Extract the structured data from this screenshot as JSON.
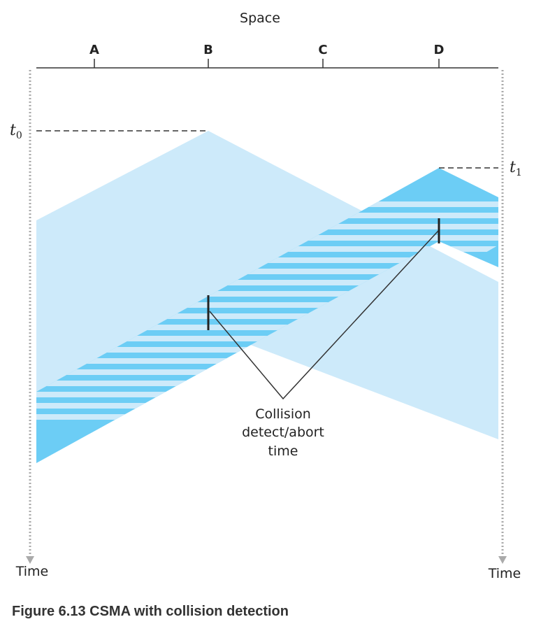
{
  "axis": {
    "label": "Space"
  },
  "stations": [
    "A",
    "B",
    "C",
    "D"
  ],
  "markers": [
    {
      "label": "t",
      "subscript": "0"
    },
    {
      "label": "t",
      "subscript": "1"
    }
  ],
  "time_labels": [
    "Time",
    "Time"
  ],
  "annotation": [
    "Collision",
    "detect/abort",
    "time"
  ],
  "caption": "Figure 6.13 CSMA with collision detection"
}
